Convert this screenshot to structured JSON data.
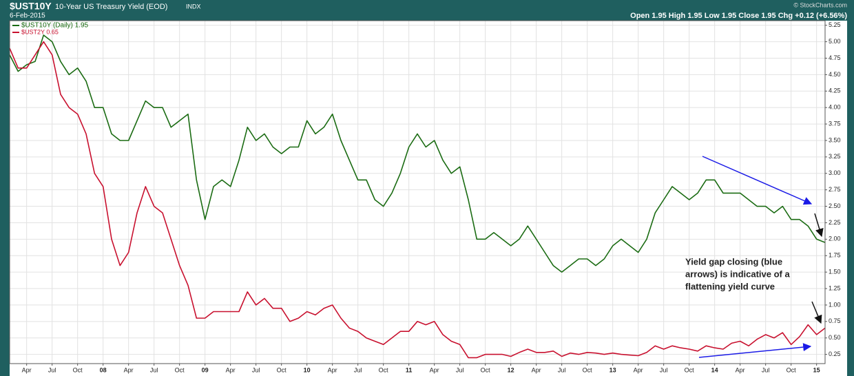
{
  "chart_data": {
    "type": "line",
    "header": {
      "symbol": "$UST10Y",
      "name": "10-Year US Treasury Yield (EOD)",
      "exchange": "INDX",
      "date": "6-Feb-2015",
      "credit": "© StockCharts.com",
      "quote": "Open 1.95  High 1.95  Low 1.95  Close 1.95  Chg +0.12 (+6.56%)"
    },
    "annotation": [
      "Yield gap closing (blue",
      "arrows) is indicative of a",
      "flattening yield curve"
    ],
    "x": [
      "2007-02",
      "2007-03",
      "2007-04",
      "2007-05",
      "2007-06",
      "2007-07",
      "2007-08",
      "2007-09",
      "2007-10",
      "2007-11",
      "2007-12",
      "2008-01",
      "2008-02",
      "2008-03",
      "2008-04",
      "2008-05",
      "2008-06",
      "2008-07",
      "2008-08",
      "2008-09",
      "2008-10",
      "2008-11",
      "2008-12",
      "2009-01",
      "2009-02",
      "2009-03",
      "2009-04",
      "2009-05",
      "2009-06",
      "2009-07",
      "2009-08",
      "2009-09",
      "2009-10",
      "2009-11",
      "2009-12",
      "2010-01",
      "2010-02",
      "2010-03",
      "2010-04",
      "2010-05",
      "2010-06",
      "2010-07",
      "2010-08",
      "2010-09",
      "2010-10",
      "2010-11",
      "2010-12",
      "2011-01",
      "2011-02",
      "2011-03",
      "2011-04",
      "2011-05",
      "2011-06",
      "2011-07",
      "2011-08",
      "2011-09",
      "2011-10",
      "2011-11",
      "2011-12",
      "2012-01",
      "2012-02",
      "2012-03",
      "2012-04",
      "2012-05",
      "2012-06",
      "2012-07",
      "2012-08",
      "2012-09",
      "2012-10",
      "2012-11",
      "2012-12",
      "2013-01",
      "2013-02",
      "2013-03",
      "2013-04",
      "2013-05",
      "2013-06",
      "2013-07",
      "2013-08",
      "2013-09",
      "2013-10",
      "2013-11",
      "2013-12",
      "2014-01",
      "2014-02",
      "2014-03",
      "2014-04",
      "2014-05",
      "2014-06",
      "2014-07",
      "2014-08",
      "2014-09",
      "2014-10",
      "2014-11",
      "2014-12",
      "2015-01",
      "2015-02"
    ],
    "series": [
      {
        "name": "$UST10Y (Daily) 1.95",
        "color": "#1a6b12",
        "values": [
          4.8,
          4.55,
          4.65,
          4.7,
          5.1,
          5.0,
          4.7,
          4.5,
          4.6,
          4.4,
          4.0,
          4.0,
          3.6,
          3.5,
          3.5,
          3.8,
          4.1,
          4.0,
          4.0,
          3.7,
          3.8,
          3.9,
          2.9,
          2.3,
          2.8,
          2.9,
          2.8,
          3.2,
          3.7,
          3.5,
          3.6,
          3.4,
          3.3,
          3.4,
          3.4,
          3.8,
          3.6,
          3.7,
          3.9,
          3.5,
          3.2,
          2.9,
          2.9,
          2.6,
          2.5,
          2.7,
          3.0,
          3.4,
          3.6,
          3.4,
          3.5,
          3.2,
          3.0,
          3.1,
          2.6,
          2.0,
          2.0,
          2.1,
          2.0,
          1.9,
          2.0,
          2.2,
          2.0,
          1.8,
          1.6,
          1.5,
          1.6,
          1.7,
          1.7,
          1.6,
          1.7,
          1.9,
          2.0,
          1.9,
          1.8,
          2.0,
          2.4,
          2.6,
          2.8,
          2.7,
          2.6,
          2.7,
          2.9,
          2.9,
          2.7,
          2.7,
          2.7,
          2.6,
          2.5,
          2.5,
          2.4,
          2.5,
          2.3,
          2.3,
          2.2,
          2.0,
          1.95
        ]
      },
      {
        "name": "$UST2Y 0.65",
        "color": "#c8102e",
        "values": [
          4.9,
          4.6,
          4.6,
          4.8,
          5.0,
          4.8,
          4.2,
          4.0,
          3.9,
          3.6,
          3.0,
          2.8,
          2.0,
          1.6,
          1.8,
          2.4,
          2.8,
          2.5,
          2.4,
          2.0,
          1.6,
          1.3,
          0.8,
          0.8,
          0.9,
          0.9,
          0.9,
          0.9,
          1.2,
          1.0,
          1.1,
          0.95,
          0.95,
          0.75,
          0.8,
          0.9,
          0.85,
          0.95,
          1.0,
          0.8,
          0.65,
          0.6,
          0.5,
          0.45,
          0.4,
          0.5,
          0.6,
          0.6,
          0.75,
          0.7,
          0.75,
          0.55,
          0.45,
          0.4,
          0.2,
          0.2,
          0.25,
          0.25,
          0.25,
          0.22,
          0.28,
          0.33,
          0.28,
          0.28,
          0.3,
          0.22,
          0.27,
          0.25,
          0.28,
          0.27,
          0.25,
          0.27,
          0.25,
          0.24,
          0.23,
          0.28,
          0.38,
          0.33,
          0.38,
          0.35,
          0.33,
          0.3,
          0.38,
          0.35,
          0.33,
          0.42,
          0.45,
          0.38,
          0.48,
          0.55,
          0.5,
          0.58,
          0.4,
          0.52,
          0.7,
          0.55,
          0.65
        ]
      }
    ],
    "xlim": [
      "2007-02",
      "2015-02"
    ],
    "xticks": [
      {
        "value": "2007-04",
        "label": "Apr"
      },
      {
        "value": "2007-07",
        "label": "Jul"
      },
      {
        "value": "2007-10",
        "label": "Oct"
      },
      {
        "value": "2008-01",
        "label": "08"
      },
      {
        "value": "2008-04",
        "label": "Apr"
      },
      {
        "value": "2008-07",
        "label": "Jul"
      },
      {
        "value": "2008-10",
        "label": "Oct"
      },
      {
        "value": "2009-01",
        "label": "09"
      },
      {
        "value": "2009-04",
        "label": "Apr"
      },
      {
        "value": "2009-07",
        "label": "Jul"
      },
      {
        "value": "2009-10",
        "label": "Oct"
      },
      {
        "value": "2010-01",
        "label": "10"
      },
      {
        "value": "2010-04",
        "label": "Apr"
      },
      {
        "value": "2010-07",
        "label": "Jul"
      },
      {
        "value": "2010-10",
        "label": "Oct"
      },
      {
        "value": "2011-01",
        "label": "11"
      },
      {
        "value": "2011-04",
        "label": "Apr"
      },
      {
        "value": "2011-07",
        "label": "Jul"
      },
      {
        "value": "2011-10",
        "label": "Oct"
      },
      {
        "value": "2012-01",
        "label": "12"
      },
      {
        "value": "2012-04",
        "label": "Apr"
      },
      {
        "value": "2012-07",
        "label": "Jul"
      },
      {
        "value": "2012-10",
        "label": "Oct"
      },
      {
        "value": "2013-01",
        "label": "13"
      },
      {
        "value": "2013-04",
        "label": "Apr"
      },
      {
        "value": "2013-07",
        "label": "Jul"
      },
      {
        "value": "2013-10",
        "label": "Oct"
      },
      {
        "value": "2014-01",
        "label": "14"
      },
      {
        "value": "2014-04",
        "label": "Apr"
      },
      {
        "value": "2014-07",
        "label": "Jul"
      },
      {
        "value": "2014-10",
        "label": "Oct"
      },
      {
        "value": "2015-01",
        "label": "15"
      }
    ],
    "ylim": [
      0.11,
      5.32
    ],
    "yticks": [
      0.25,
      {
        "value": 0.5,
        "label": "0.50"
      },
      0.75,
      {
        "value": 1,
        "label": "1.00"
      },
      1.25,
      {
        "value": 1.5,
        "label": "1.50"
      },
      1.75,
      {
        "value": 2,
        "label": "2.00"
      },
      2.25,
      {
        "value": 2.5,
        "label": "2.50"
      },
      2.75,
      {
        "value": 3,
        "label": "3.00"
      },
      3.25,
      {
        "value": 3.5,
        "label": "3.50"
      },
      3.75,
      {
        "value": 4,
        "label": "4.00"
      },
      4.25,
      {
        "value": 4.5,
        "label": "4.50"
      },
      4.75,
      {
        "value": 5,
        "label": "5.00"
      },
      5.25
    ],
    "grid": true,
    "legend": "top-left"
  }
}
